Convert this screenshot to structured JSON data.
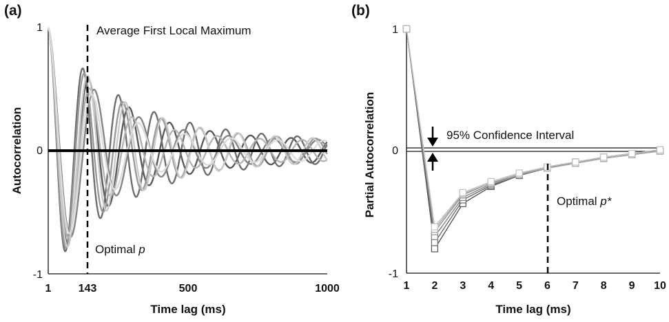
{
  "chart_data": [
    {
      "panel": "(a)",
      "type": "line",
      "xlabel": "Time lag (ms)",
      "ylabel": "Autocorrelation",
      "xlim": [
        1,
        1000
      ],
      "ylim": [
        -1,
        1
      ],
      "x_ticks": [
        "1",
        "143",
        "500",
        "1000"
      ],
      "y_ticks": [
        "1",
        "0",
        "-1"
      ],
      "zero_line": 0,
      "vertical_marker": {
        "x": 143,
        "style": "dashed"
      },
      "annotations": [
        "Average First Local Maximum",
        "Optimal ",
        "p"
      ],
      "series_shape": "damped oscillations starting at 1, first local minimum near -0.85 at ~120 ms, first local maximum near 0.8 at ~143 ms, amplitude decaying toward ~0.15 by 1000 ms",
      "series": [
        {
          "color": "#5a5a5a",
          "period": 145,
          "decay": 0.0042,
          "phase": 0
        },
        {
          "color": "#6e6e6e",
          "period": 128,
          "decay": 0.0036,
          "phase": 0.2
        },
        {
          "color": "#858585",
          "period": 160,
          "decay": 0.0048,
          "phase": -0.25
        },
        {
          "color": "#9a9a9a",
          "period": 138,
          "decay": 0.004,
          "phase": 0.4
        },
        {
          "color": "#b3b3b3",
          "period": 152,
          "decay": 0.0052,
          "phase": 0.1
        },
        {
          "color": "#cacaca",
          "period": 134,
          "decay": 0.0039,
          "phase": -0.4
        },
        {
          "color": "#dcdcdc",
          "period": 166,
          "decay": 0.0057,
          "phase": 0.3
        }
      ]
    },
    {
      "panel": "(b)",
      "type": "line",
      "xlabel": "Time lag (ms)",
      "ylabel": "Partial Autocorrelation",
      "xlim": [
        1,
        10
      ],
      "ylim": [
        -1,
        1
      ],
      "x": [
        1,
        2,
        3,
        4,
        5,
        6,
        7,
        8,
        9,
        10
      ],
      "y_ticks": [
        "1",
        "0",
        "-1"
      ],
      "confidence_interval": [
        -0.01,
        0.01
      ],
      "vertical_marker": {
        "x": 6,
        "style": "dashed"
      },
      "annotations": [
        "95% Confidence Interval",
        "Optimal ",
        "p*"
      ],
      "marker": "square",
      "series": [
        {
          "color": "#555555",
          "values": [
            1,
            -0.8,
            -0.43,
            -0.29,
            -0.2,
            -0.14,
            -0.09,
            -0.05,
            -0.02,
            0.01
          ]
        },
        {
          "color": "#6a6a6a",
          "values": [
            1,
            -0.75,
            -0.4,
            -0.28,
            -0.2,
            -0.14,
            -0.1,
            -0.06,
            -0.03,
            0.0
          ]
        },
        {
          "color": "#808080",
          "values": [
            1,
            -0.7,
            -0.38,
            -0.27,
            -0.19,
            -0.13,
            -0.09,
            -0.06,
            -0.03,
            0.0
          ]
        },
        {
          "color": "#959595",
          "values": [
            1,
            -0.66,
            -0.36,
            -0.26,
            -0.19,
            -0.13,
            -0.09,
            -0.05,
            -0.02,
            0.01
          ]
        },
        {
          "color": "#aaaaaa",
          "values": [
            1,
            -0.64,
            -0.35,
            -0.26,
            -0.19,
            -0.14,
            -0.1,
            -0.06,
            -0.03,
            0.0
          ]
        },
        {
          "color": "#c2c2c2",
          "values": [
            1,
            -0.62,
            -0.34,
            -0.25,
            -0.18,
            -0.13,
            -0.09,
            -0.05,
            -0.02,
            0.01
          ]
        }
      ]
    }
  ]
}
